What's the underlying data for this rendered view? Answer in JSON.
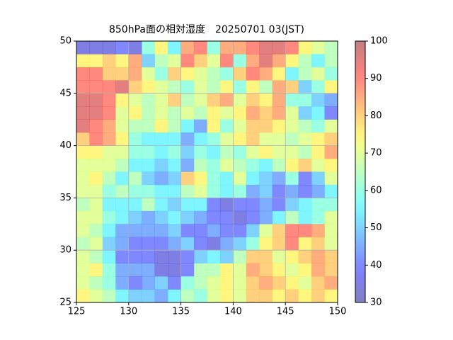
{
  "chart_data": {
    "type": "heatmap",
    "title": "850hPa面の相対湿度　20250701 03(JST)",
    "xlim": [
      125,
      150
    ],
    "ylim": [
      25,
      50
    ],
    "xticks": [
      125,
      130,
      135,
      140,
      145,
      150
    ],
    "yticks": [
      25,
      30,
      35,
      40,
      45,
      50
    ],
    "grid": true,
    "cmap": "jet",
    "alpha": 0.5,
    "clim": [
      30,
      100
    ],
    "cticks": [
      30,
      40,
      50,
      60,
      70,
      80,
      90,
      100
    ],
    "values": [
      [
        35,
        35,
        35,
        40,
        35,
        60,
        75,
        55,
        85,
        90,
        60,
        85,
        85,
        90,
        95,
        95,
        90,
        75,
        70,
        65
      ],
      [
        75,
        75,
        80,
        75,
        85,
        50,
        65,
        70,
        90,
        80,
        70,
        90,
        60,
        85,
        95,
        85,
        75,
        65,
        55,
        65
      ],
      [
        90,
        90,
        80,
        80,
        85,
        70,
        60,
        80,
        75,
        70,
        65,
        60,
        80,
        90,
        85,
        75,
        55,
        65,
        70,
        60
      ],
      [
        90,
        90,
        90,
        95,
        80,
        75,
        70,
        65,
        60,
        70,
        65,
        75,
        60,
        75,
        65,
        85,
        80,
        50,
        60,
        75
      ],
      [
        95,
        95,
        90,
        75,
        70,
        65,
        70,
        80,
        65,
        70,
        80,
        85,
        70,
        80,
        75,
        85,
        60,
        60,
        50,
        45
      ],
      [
        95,
        95,
        90,
        70,
        75,
        65,
        70,
        65,
        70,
        65,
        75,
        70,
        75,
        85,
        80,
        85,
        70,
        50,
        55,
        40
      ],
      [
        95,
        90,
        85,
        70,
        65,
        65,
        75,
        65,
        55,
        45,
        75,
        60,
        70,
        80,
        80,
        75,
        70,
        65,
        60,
        70
      ],
      [
        80,
        90,
        85,
        75,
        60,
        55,
        55,
        55,
        45,
        55,
        60,
        70,
        75,
        80,
        70,
        70,
        65,
        70,
        75,
        80
      ],
      [
        75,
        75,
        70,
        70,
        60,
        60,
        55,
        60,
        50,
        60,
        55,
        65,
        60,
        70,
        75,
        70,
        70,
        65,
        75,
        85
      ],
      [
        70,
        70,
        70,
        65,
        55,
        55,
        50,
        55,
        45,
        65,
        60,
        70,
        65,
        60,
        55,
        65,
        75,
        80,
        70,
        75
      ],
      [
        70,
        75,
        65,
        55,
        65,
        50,
        45,
        50,
        80,
        75,
        60,
        55,
        70,
        55,
        50,
        45,
        60,
        40,
        50,
        70
      ],
      [
        70,
        70,
        60,
        65,
        60,
        60,
        55,
        55,
        65,
        70,
        60,
        55,
        60,
        45,
        50,
        40,
        45,
        40,
        45,
        55
      ],
      [
        65,
        70,
        55,
        55,
        55,
        65,
        55,
        50,
        55,
        55,
        40,
        35,
        40,
        40,
        45,
        40,
        50,
        55,
        60,
        60
      ],
      [
        70,
        70,
        60,
        55,
        50,
        45,
        50,
        55,
        50,
        45,
        40,
        40,
        35,
        40,
        45,
        55,
        65,
        55,
        60,
        70
      ],
      [
        70,
        65,
        55,
        45,
        45,
        45,
        45,
        50,
        40,
        40,
        45,
        40,
        40,
        50,
        70,
        80,
        90,
        90,
        85,
        70
      ],
      [
        65,
        70,
        50,
        45,
        40,
        40,
        40,
        45,
        50,
        40,
        35,
        45,
        50,
        60,
        75,
        80,
        90,
        75,
        80,
        70
      ],
      [
        70,
        65,
        55,
        40,
        40,
        40,
        35,
        35,
        40,
        50,
        55,
        50,
        65,
        80,
        80,
        70,
        75,
        80,
        85,
        80
      ],
      [
        70,
        75,
        60,
        45,
        45,
        45,
        35,
        35,
        40,
        65,
        65,
        75,
        70,
        85,
        80,
        75,
        70,
        75,
        85,
        80
      ],
      [
        70,
        65,
        60,
        45,
        40,
        45,
        50,
        40,
        60,
        65,
        70,
        75,
        70,
        80,
        85,
        80,
        75,
        70,
        80,
        85
      ],
      [
        75,
        70,
        65,
        55,
        50,
        50,
        45,
        55,
        65,
        60,
        70,
        75,
        70,
        80,
        80,
        75,
        80,
        75,
        80,
        75
      ]
    ]
  }
}
